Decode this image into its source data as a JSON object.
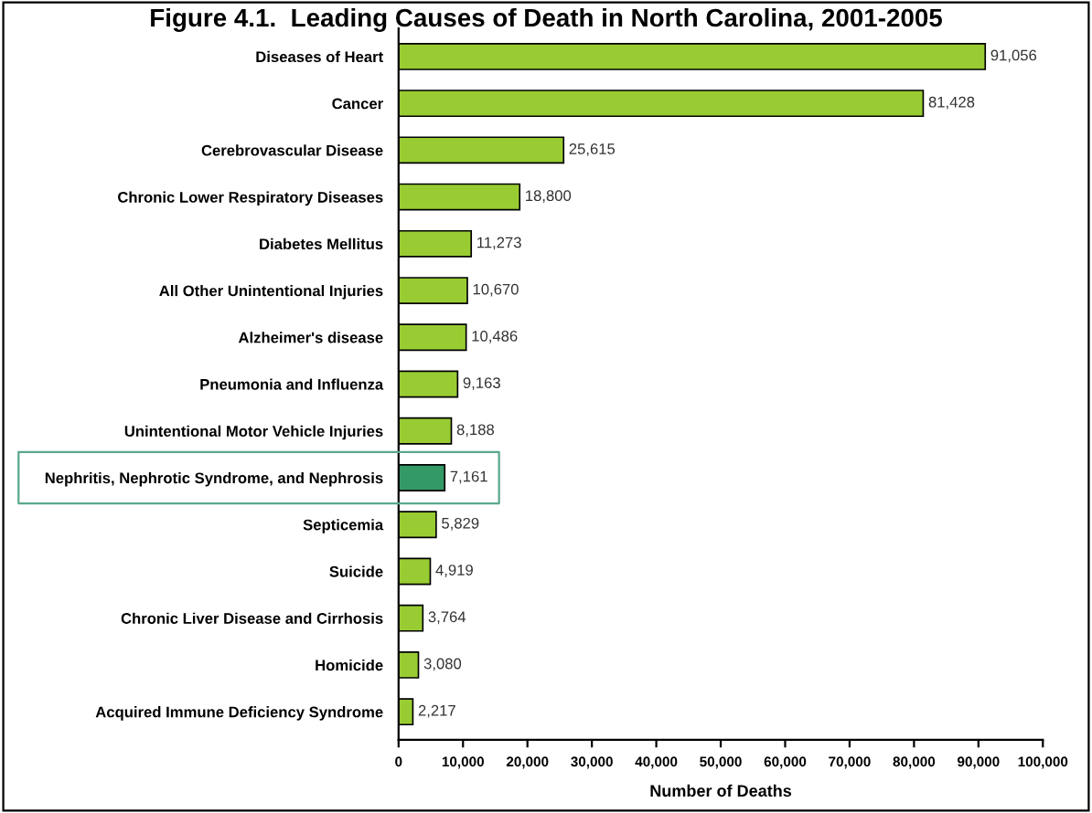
{
  "chart_data": {
    "type": "bar",
    "orientation": "horizontal",
    "title": "Figure 4.1.  Leading Causes of Death in North Carolina, 2001-2005",
    "xlabel": "Number of Deaths",
    "categories": [
      "Diseases of Heart",
      "Cancer",
      "Cerebrovascular Disease",
      "Chronic Lower Respiratory Diseases",
      "Diabetes Mellitus",
      "All Other Unintentional Injuries",
      "Alzheimer's disease",
      "Pneumonia and Influenza",
      "Unintentional Motor Vehicle Injuries",
      "Nephritis, Nephrotic Syndrome, and Nephrosis",
      "Septicemia",
      "Suicide",
      "Chronic Liver Disease and Cirrhosis",
      "Homicide",
      "Acquired Immune Deficiency Syndrome"
    ],
    "values": [
      91056,
      81428,
      25615,
      18800,
      11273,
      10670,
      10486,
      9163,
      8188,
      7161,
      5829,
      4919,
      3764,
      3080,
      2217
    ],
    "value_labels": [
      "91,056",
      "81,428",
      "25,615",
      "18,800",
      "11,273",
      "10,670",
      "10,486",
      "9,163",
      "8,188",
      "7,161",
      "5,829",
      "4,919",
      "3,764",
      "3,080",
      "2,217"
    ],
    "colors": [
      "#99cc33",
      "#99cc33",
      "#99cc33",
      "#99cc33",
      "#99cc33",
      "#99cc33",
      "#99cc33",
      "#99cc33",
      "#99cc33",
      "#339966",
      "#99cc33",
      "#99cc33",
      "#99cc33",
      "#99cc33",
      "#99cc33"
    ],
    "xlim": [
      0,
      100000
    ],
    "xticks": [
      0,
      {
        "value": 10000,
        "label": "10,000"
      },
      {
        "value": 20000,
        "label": "20,000"
      },
      {
        "value": 30000,
        "label": "30,000"
      },
      {
        "value": 40000,
        "label": "40,000"
      },
      {
        "value": 50000,
        "label": "50,000"
      },
      {
        "value": 60000,
        "label": "60,000"
      },
      {
        "value": 70000,
        "label": "70,000"
      },
      {
        "value": 80000,
        "label": "80,000"
      },
      {
        "value": 90000,
        "label": "90,000"
      },
      {
        "value": 100000,
        "label": "100,000"
      }
    ],
    "grid": false
  }
}
